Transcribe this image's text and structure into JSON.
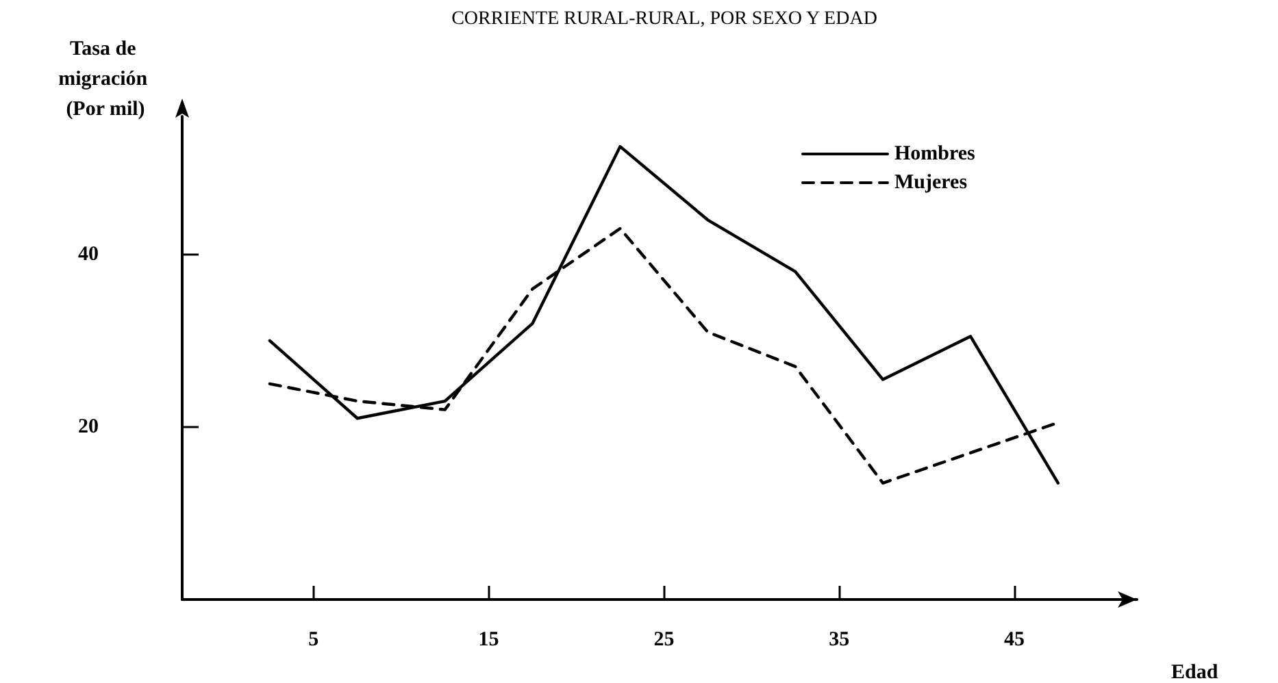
{
  "chart_data": {
    "type": "line",
    "title": "CORRIENTE RURAL-RURAL, POR SEXO Y EDAD",
    "xlabel": "Edad",
    "ylabel": "Tasa de migración (Por mil)",
    "xlim": [
      -2.5,
      52
    ],
    "xticks": [
      5,
      15,
      25,
      35,
      45
    ],
    "ylim": [
      0,
      56
    ],
    "yticks": [
      20,
      40
    ],
    "series": [
      {
        "name": "Hombres",
        "color": "#000000",
        "line_style": "solid",
        "x": [
          2.5,
          7.5,
          12.5,
          17.5,
          22.5,
          27.5,
          32.5,
          37.5,
          42.5,
          47.5
        ],
        "values": [
          30,
          21,
          23,
          32,
          52.5,
          44,
          38,
          25.5,
          30.5,
          13.5
        ]
      },
      {
        "name": "Mujeres",
        "color": "#000000",
        "line_style": "dashed",
        "x": [
          2.5,
          7.5,
          12.5,
          17.5,
          22.5,
          27.5,
          32.5,
          37.5,
          47.5
        ],
        "values": [
          25,
          23,
          22,
          36,
          43,
          31,
          27,
          13.5,
          20.5
        ]
      }
    ],
    "legend": "top right",
    "grid": false,
    "marker": "none"
  }
}
